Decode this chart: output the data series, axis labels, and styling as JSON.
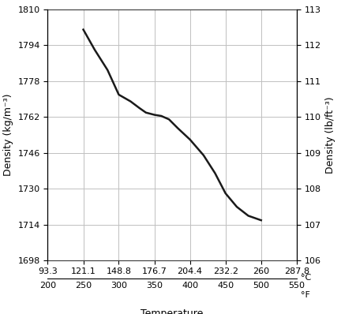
{
  "xlabel": "Temperature",
  "ylabel_left": "Density (kg/m⁻³)",
  "ylabel_right": "Density (lb/ft⁻³)",
  "x_celsius": [
    93.3,
    121.1,
    148.8,
    176.7,
    204.4,
    232.2,
    260,
    287.8
  ],
  "x_fahrenheit": [
    200,
    250,
    300,
    350,
    400,
    450,
    500,
    550
  ],
  "ylim_left": [
    1698,
    1810
  ],
  "ylim_right": [
    106,
    113
  ],
  "yticks_left": [
    1698,
    1714,
    1730,
    1746,
    1762,
    1778,
    1794,
    1810
  ],
  "yticks_right": [
    106,
    107,
    108,
    109,
    110,
    111,
    112,
    113
  ],
  "line_x_C": [
    121.1,
    130,
    140,
    148.8,
    158,
    165,
    170,
    176.7,
    182,
    188,
    195,
    204.4,
    215,
    224,
    232.2,
    241,
    250,
    260
  ],
  "line_y_kgm3": [
    1801,
    1792,
    1783,
    1772,
    1769,
    1766,
    1764,
    1763,
    1762.5,
    1761,
    1757,
    1752,
    1745,
    1737,
    1728,
    1722,
    1718,
    1716
  ],
  "line_color": "#1a1a1a",
  "line_width": 1.8,
  "grid_color": "#c0c0c0",
  "background_color": "#ffffff",
  "tick_label_fontsize": 8,
  "axis_label_fontsize": 9
}
